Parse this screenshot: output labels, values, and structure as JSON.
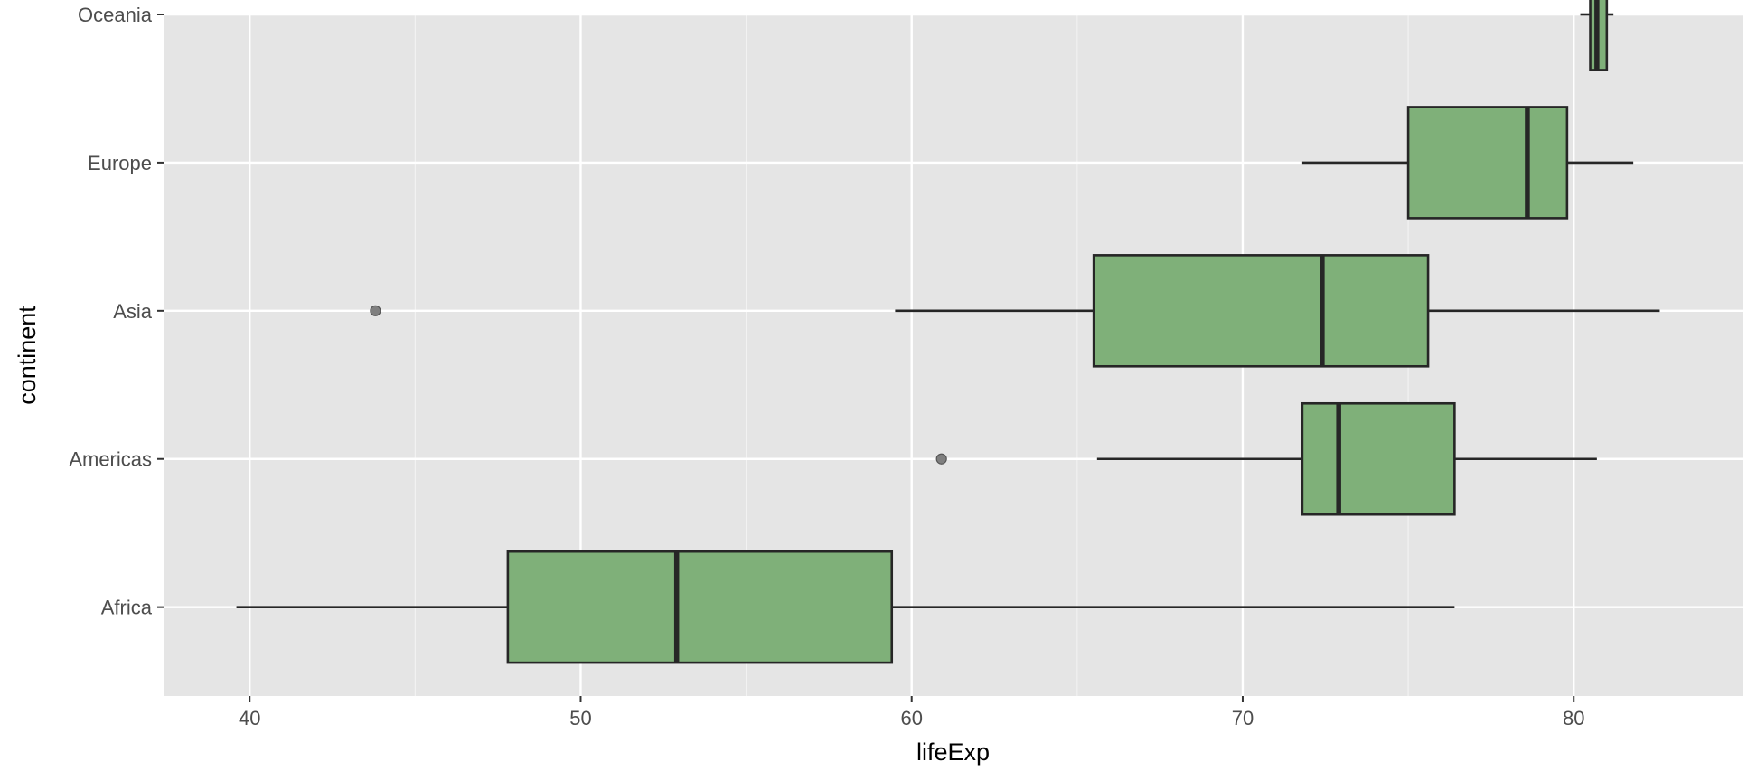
{
  "chart_data": {
    "type": "boxplot",
    "orientation": "horizontal",
    "xlabel": "lifeExp",
    "ylabel": "continent",
    "xlim": [
      37.4,
      85.1
    ],
    "x_ticks": [
      40,
      50,
      60,
      70,
      80
    ],
    "x_tick_labels": [
      "40",
      "50",
      "60",
      "70",
      "80"
    ],
    "grid": true,
    "categories": [
      "Africa",
      "Americas",
      "Asia",
      "Europe",
      "Oceania"
    ],
    "boxes": [
      {
        "category": "Africa",
        "whisker_low": 39.6,
        "q1": 47.8,
        "median": 52.9,
        "q3": 59.4,
        "whisker_high": 76.4,
        "outliers": []
      },
      {
        "category": "Americas",
        "whisker_low": 65.6,
        "q1": 71.8,
        "median": 72.9,
        "q3": 76.4,
        "whisker_high": 80.7,
        "outliers": [
          60.9
        ]
      },
      {
        "category": "Asia",
        "whisker_low": 59.5,
        "q1": 65.5,
        "median": 72.4,
        "q3": 75.6,
        "whisker_high": 82.6,
        "outliers": [
          43.8
        ]
      },
      {
        "category": "Europe",
        "whisker_low": 71.8,
        "q1": 75.0,
        "median": 78.6,
        "q3": 79.8,
        "whisker_high": 81.8,
        "outliers": []
      },
      {
        "category": "Oceania",
        "whisker_low": 80.2,
        "q1": 80.5,
        "median": 80.7,
        "q3": 81.0,
        "whisker_high": 81.2,
        "outliers": []
      }
    ],
    "colors": {
      "panel_background": "#e5e5e5",
      "grid_major": "#ffffff",
      "grid_minor": "#f2f2f2",
      "box_fill": "#7fb079",
      "box_stroke": "#262626",
      "outlier": "#7f7f7f"
    }
  }
}
